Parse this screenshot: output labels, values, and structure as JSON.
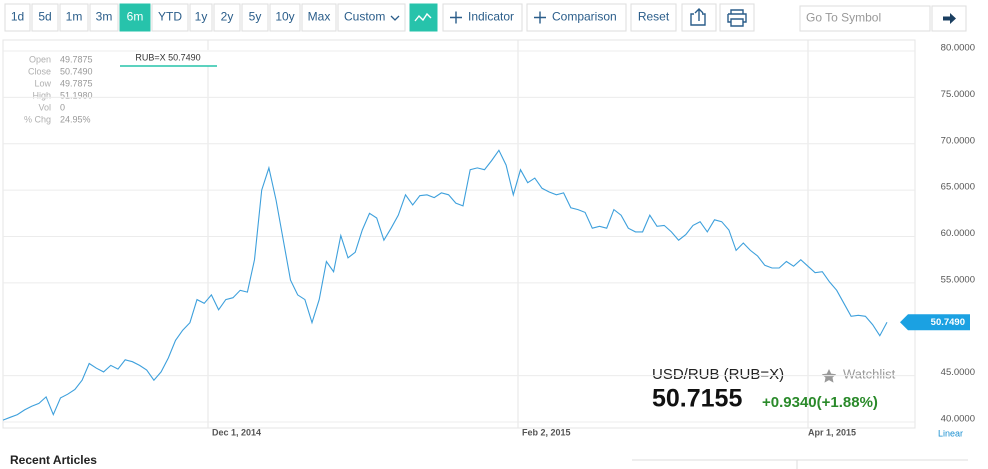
{
  "toolbar": {
    "ranges": [
      {
        "label": "1d"
      },
      {
        "label": "5d"
      },
      {
        "label": "1m"
      },
      {
        "label": "3m"
      },
      {
        "label": "6m",
        "active": true
      },
      {
        "label": "YTD"
      },
      {
        "label": "1y"
      },
      {
        "label": "2y"
      },
      {
        "label": "5y"
      },
      {
        "label": "10y"
      },
      {
        "label": "Max"
      }
    ],
    "custom": "Custom",
    "indicator": "Indicator",
    "comparison": "Comparison",
    "reset": "Reset",
    "search_placeholder": "Go To Symbol"
  },
  "info_panel": [
    {
      "label": "Open",
      "value": "49.7875"
    },
    {
      "label": "Close",
      "value": "50.7490"
    },
    {
      "label": "Low",
      "value": "49.7875"
    },
    {
      "label": "High",
      "value": "51.1980"
    },
    {
      "label": "Vol",
      "value": "0"
    },
    {
      "label": "% Chg",
      "value": "24.95%"
    }
  ],
  "tooltip": "RUB=X 50.7490",
  "chart_data": {
    "type": "line",
    "color": "#3ea0dc",
    "values": [
      40.2,
      40.5,
      40.8,
      41.3,
      41.7,
      42.0,
      42.7,
      40.8,
      42.6,
      43.0,
      43.5,
      44.5,
      46.3,
      45.8,
      45.4,
      46.1,
      45.7,
      46.7,
      46.5,
      46.1,
      45.6,
      44.5,
      45.4,
      46.9,
      48.8,
      49.9,
      50.7,
      53.2,
      52.8,
      53.7,
      52.1,
      53.2,
      53.4,
      54.2,
      54.0,
      57.5,
      65.0,
      67.4,
      63.9,
      59.6,
      55.3,
      53.7,
      53.2,
      50.7,
      53.2,
      57.3,
      56.2,
      60.1,
      57.7,
      58.3,
      60.7,
      62.5,
      62.0,
      59.6,
      60.9,
      62.3,
      64.5,
      63.4,
      64.4,
      64.5,
      64.2,
      64.7,
      64.5,
      63.6,
      63.3,
      67.2,
      67.4,
      67.2,
      68.2,
      69.3,
      67.7,
      64.5,
      67.2,
      65.8,
      66.3,
      65.2,
      64.8,
      64.5,
      64.7,
      63.1,
      62.9,
      62.6,
      60.9,
      61.1,
      60.9,
      62.9,
      62.3,
      60.9,
      60.5,
      60.5,
      62.3,
      61.1,
      61.2,
      60.5,
      59.6,
      60.2,
      61.2,
      61.6,
      60.5,
      61.8,
      61.6,
      60.7,
      58.5,
      59.3,
      58.5,
      57.9,
      56.9,
      56.6,
      56.6,
      57.3,
      56.8,
      57.5,
      56.8,
      56.1,
      56.2,
      55.1,
      54.2,
      52.8,
      51.4,
      51.5,
      51.4,
      50.5,
      49.3,
      50.749
    ],
    "value_labels_last": "50.7490",
    "ylim": [
      39.35,
      81.19
    ],
    "yticks": [
      {
        "value": 40,
        "label": "40.0000"
      },
      {
        "value": 45,
        "label": "45.0000"
      },
      {
        "value": 55,
        "label": "55.0000"
      },
      {
        "value": 60,
        "label": "60.0000"
      },
      {
        "value": 65,
        "label": "65.0000"
      },
      {
        "value": 70,
        "label": "70.0000"
      },
      {
        "value": 75,
        "label": "75.0000"
      },
      {
        "value": 80,
        "label": "80.0000"
      }
    ],
    "x_labels": [
      "Dec 1, 2014",
      "Feb 2, 2015",
      "Apr 1, 2015"
    ],
    "scale": "Linear",
    "grid": true
  },
  "quote": {
    "symbol": "USD/RUB (RUB=X)",
    "watchlist": "Watchlist",
    "price": "50.7155",
    "change": "+0.9340(+1.88%)"
  },
  "articles_title": "Recent Articles"
}
